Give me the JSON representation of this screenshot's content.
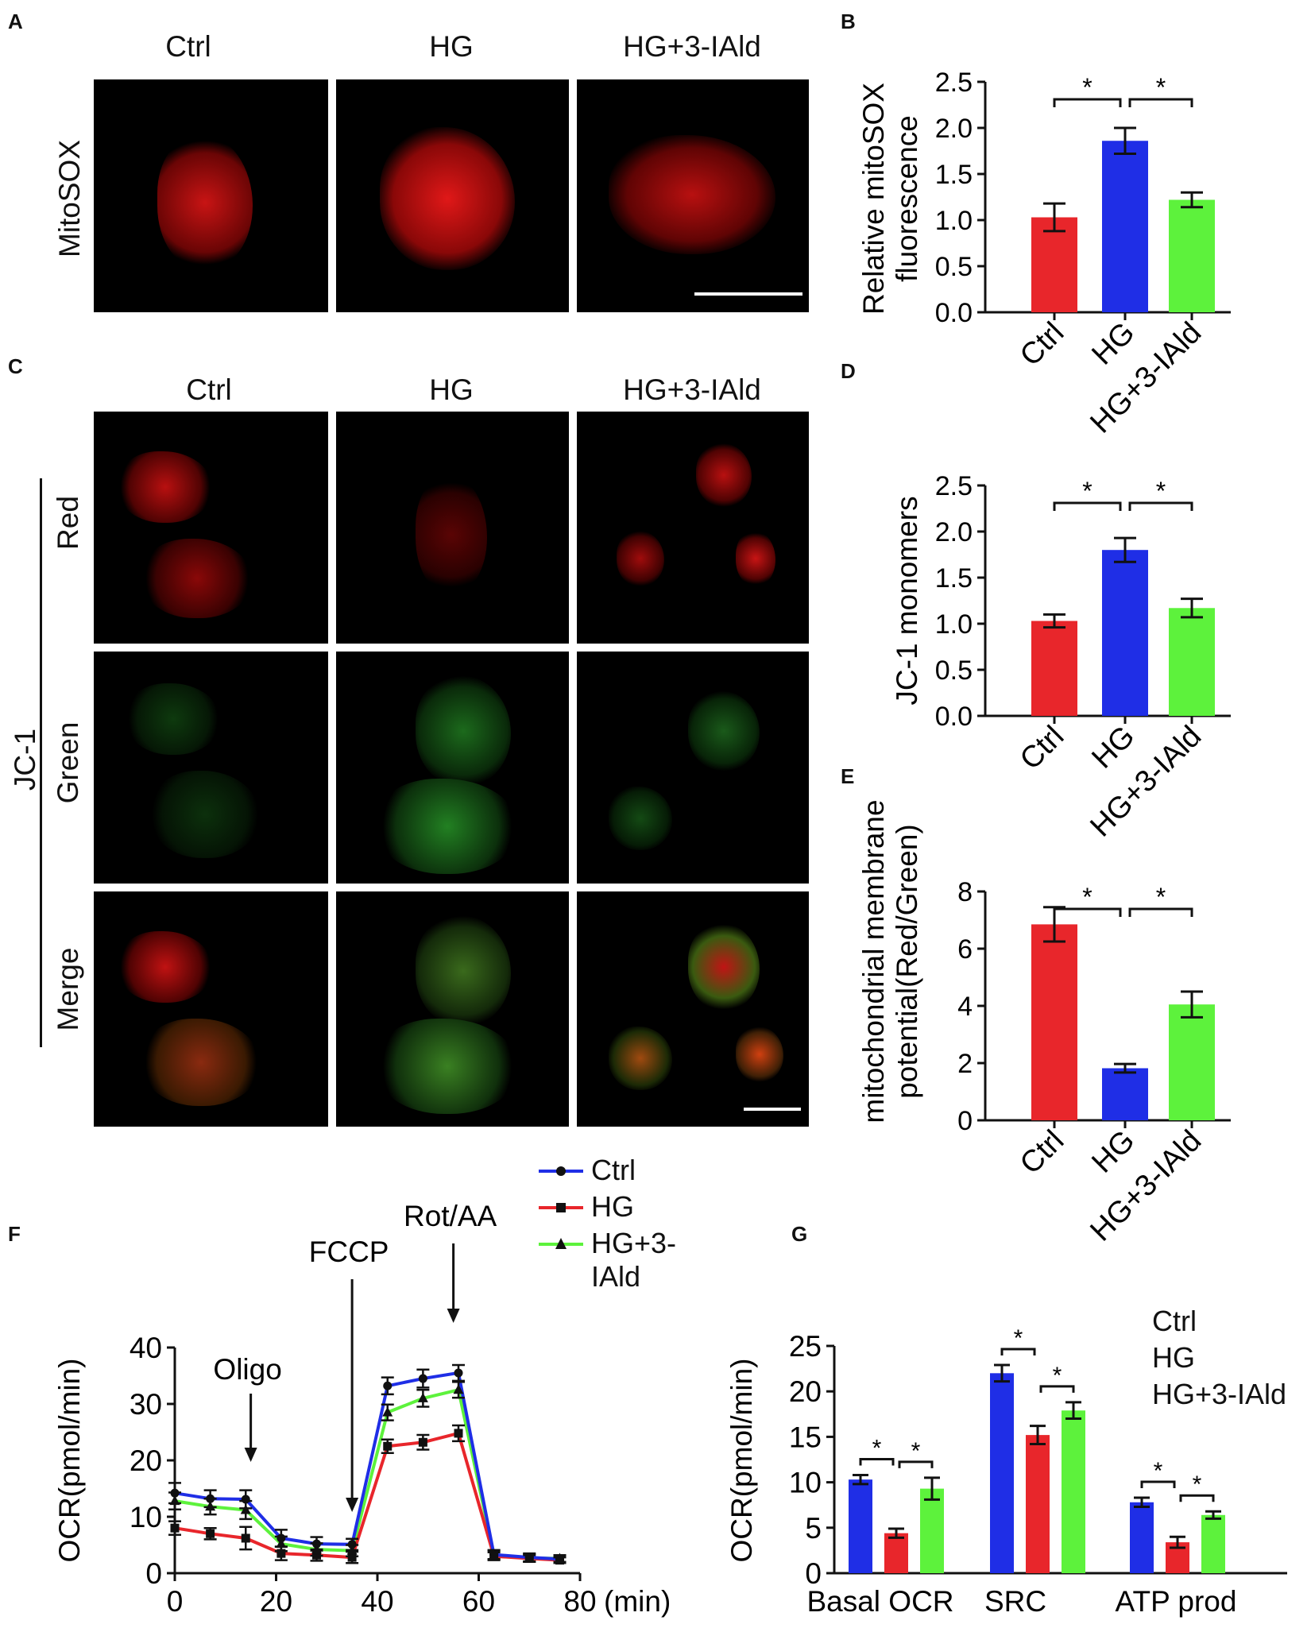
{
  "panels": {
    "A": {
      "letter": "A",
      "columns": [
        "Ctrl",
        "HG",
        "HG+3-IAld"
      ],
      "row_label": "MitoSOX"
    },
    "B": {
      "letter": "B"
    },
    "C": {
      "letter": "C",
      "columns": [
        "Ctrl",
        "HG",
        "HG+3-IAld"
      ],
      "group_label": "JC-1",
      "rows": [
        "Red",
        "Green",
        "Merge"
      ]
    },
    "D": {
      "letter": "D"
    },
    "E": {
      "letter": "E"
    },
    "F": {
      "letter": "F"
    },
    "G": {
      "letter": "G"
    }
  },
  "colors": {
    "ctrl": "#1f2ee6",
    "hg": "#e8262b",
    "hg3": "#5df23c",
    "ctrl_bar": "#e8262b",
    "hg_bar": "#1f2ee6",
    "hg3_bar": "#5df23c"
  },
  "legend_F": [
    "Ctrl",
    "HG",
    "HG+3-IAld"
  ],
  "legend_G": [
    "Ctrl",
    "HG",
    "HG+3-IAld"
  ],
  "chart_data": [
    {
      "id": "B",
      "type": "bar",
      "ylabel": "Relative mitoSOX fluorescence",
      "categories": [
        "Ctrl",
        "HG",
        "HG+3-IAld"
      ],
      "values": [
        1.03,
        1.86,
        1.22
      ],
      "errors": [
        0.15,
        0.14,
        0.08
      ],
      "ylim": [
        0,
        2.5
      ],
      "yticks": [
        "0.0",
        "0.5",
        "1.0",
        "1.5",
        "2.0",
        "2.5"
      ],
      "significance": [
        "*",
        "*"
      ]
    },
    {
      "id": "D",
      "type": "bar",
      "ylabel": "JC-1 monomers",
      "categories": [
        "Ctrl",
        "HG",
        "HG+3-IAld"
      ],
      "values": [
        1.03,
        1.8,
        1.17
      ],
      "errors": [
        0.07,
        0.13,
        0.1
      ],
      "ylim": [
        0,
        2.5
      ],
      "yticks": [
        "0.0",
        "0.5",
        "1.0",
        "1.5",
        "2.0",
        "2.5"
      ],
      "significance": [
        "*",
        "*"
      ]
    },
    {
      "id": "E",
      "type": "bar",
      "ylabel": "mitochondrial membrane potential(Red/Green)",
      "categories": [
        "Ctrl",
        "HG",
        "HG+3-IAld"
      ],
      "values": [
        6.85,
        1.82,
        4.05
      ],
      "errors": [
        0.6,
        0.15,
        0.45
      ],
      "ylim": [
        0,
        8
      ],
      "yticks": [
        "0",
        "2",
        "4",
        "6",
        "8"
      ],
      "significance": [
        "*",
        "*"
      ]
    },
    {
      "id": "F",
      "type": "line",
      "ylabel": "OCR(pmol/min)",
      "xlabel": "(min)",
      "xlim": [
        0,
        80
      ],
      "ylim": [
        0,
        40
      ],
      "xticks": [
        "0",
        "20",
        "40",
        "60",
        "80"
      ],
      "yticks": [
        "0",
        "10",
        "20",
        "30",
        "40"
      ],
      "annotations": [
        "Oligo",
        "FCCP",
        "Rot/AA"
      ],
      "annotation_x": [
        15,
        35,
        55
      ],
      "x": [
        0,
        7,
        14,
        21,
        28,
        35,
        42,
        49,
        56,
        63,
        70,
        76
      ],
      "series": [
        {
          "name": "Ctrl",
          "values": [
            14.2,
            13.2,
            13.1,
            6.2,
            5.2,
            5.1,
            33.2,
            34.5,
            35.5,
            3.3,
            2.8,
            2.5
          ],
          "errors": [
            1.8,
            1.5,
            1.6,
            1.5,
            1.2,
            1.0,
            1.5,
            1.6,
            1.4,
            0.8,
            0.7,
            0.6
          ]
        },
        {
          "name": "HG",
          "values": [
            8.0,
            7.0,
            6.2,
            3.5,
            3.2,
            2.8,
            22.5,
            23.2,
            24.8,
            3.0,
            2.6,
            2.3
          ],
          "errors": [
            1.2,
            1.0,
            2.0,
            1.2,
            1.0,
            1.0,
            1.2,
            1.3,
            1.4,
            0.7,
            0.6,
            0.5
          ]
        },
        {
          "name": "HG+3-IAld",
          "values": [
            12.8,
            11.8,
            11.2,
            5.2,
            4.2,
            4.0,
            28.5,
            31.0,
            32.5,
            3.2,
            2.7,
            2.6
          ],
          "errors": [
            1.5,
            1.4,
            1.6,
            1.3,
            1.1,
            1.0,
            1.4,
            1.5,
            1.4,
            0.8,
            0.7,
            0.6
          ]
        }
      ]
    },
    {
      "id": "G",
      "type": "bar",
      "ylabel": "OCR(pmol/min)",
      "categories": [
        "Basal OCR",
        "SRC",
        "ATP prod"
      ],
      "ylim": [
        0,
        25
      ],
      "yticks": [
        "0",
        "5",
        "10",
        "15",
        "20",
        "25"
      ],
      "series": [
        {
          "name": "Ctrl",
          "values": [
            10.3,
            22.0,
            7.8
          ],
          "errors": [
            0.5,
            0.9,
            0.5
          ]
        },
        {
          "name": "HG",
          "values": [
            4.4,
            15.2,
            3.4
          ],
          "errors": [
            0.5,
            1.0,
            0.6
          ]
        },
        {
          "name": "HG+3-IAld",
          "values": [
            9.3,
            17.9,
            6.4
          ],
          "errors": [
            1.2,
            0.9,
            0.4
          ]
        }
      ],
      "significance": [
        "*",
        "*"
      ]
    }
  ]
}
